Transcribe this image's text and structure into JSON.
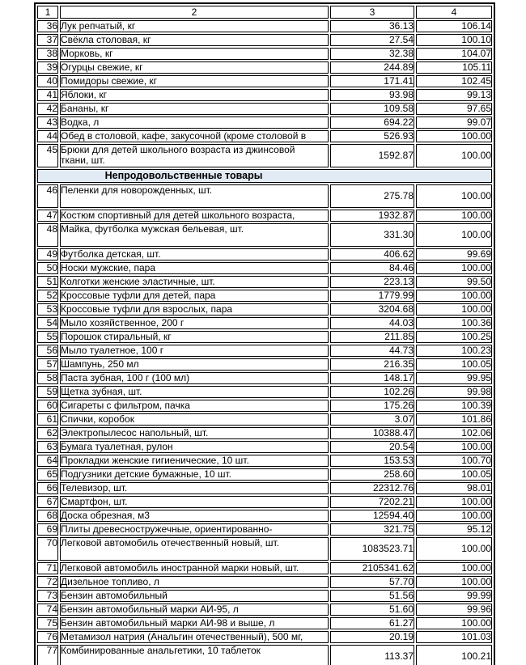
{
  "colors": {
    "page_bg": "#ffffff",
    "border": "#000000",
    "section_bg": "#e2eaf3",
    "text": "#000000"
  },
  "table": {
    "columns": [
      "1",
      "2",
      "3",
      "4"
    ],
    "section_title": "Непродовольственные товары",
    "rows": [
      {
        "num": "36",
        "name": "Лук репчатый, кг",
        "price": "36.13",
        "index": "106.14"
      },
      {
        "num": "37",
        "name": "Свёкла столовая, кг",
        "price": "27.54",
        "index": "100.10"
      },
      {
        "num": "38",
        "name": "Морковь, кг",
        "price": "32.38",
        "index": "104.07"
      },
      {
        "num": "39",
        "name": "Огурцы свежие, кг",
        "price": "244.89",
        "index": "105.11"
      },
      {
        "num": "40",
        "name": "Помидоры свежие, кг",
        "price": "171.41",
        "index": "102.45"
      },
      {
        "num": "41",
        "name": "Яблоки, кг",
        "price": "93.98",
        "index": "99.13"
      },
      {
        "num": "42",
        "name": "Бананы, кг",
        "price": "109.58",
        "index": "97.65"
      },
      {
        "num": "43",
        "name": "Водка, л",
        "price": "694.22",
        "index": "99.07"
      },
      {
        "num": "44",
        "name": "Обед в столовой, кафе, закусочной (кроме столовой в",
        "price": "526.93",
        "index": "100.00"
      },
      {
        "num": "45",
        "name": "Брюки для детей школьного возраста из джинсовой\nткани, шт.",
        "price": "1592.87",
        "index": "100.00",
        "tall": true
      },
      {
        "section": true
      },
      {
        "num": "46",
        "name": "Пеленки для новорожденных, шт.",
        "price": "275.78",
        "index": "100.00",
        "tall": true
      },
      {
        "num": "47",
        "name": "Костюм спортивный для детей школьного возраста,",
        "price": "1932.87",
        "index": "100.00"
      },
      {
        "num": "48",
        "name": "Майка, футболка мужская бельевая, шт.",
        "price": "331.30",
        "index": "100.00",
        "tall": true
      },
      {
        "num": "49",
        "name": "Футболка детская, шт.",
        "price": "406.62",
        "index": "99.69"
      },
      {
        "num": "50",
        "name": "Носки мужские, пара",
        "price": "84.46",
        "index": "100.00"
      },
      {
        "num": "51",
        "name": "Колготки женские эластичные, шт.",
        "price": "223.13",
        "index": "99.50"
      },
      {
        "num": "52",
        "name": "Кроссовые туфли для детей, пара",
        "price": "1779.99",
        "index": "100.00"
      },
      {
        "num": "53",
        "name": "Кроссовые туфли для взрослых, пара",
        "price": "3204.68",
        "index": "100.00"
      },
      {
        "num": "54",
        "name": "Мыло хозяйственное, 200 г",
        "price": "44.03",
        "index": "100.36"
      },
      {
        "num": "55",
        "name": "Порошок стиральный, кг",
        "price": "211.85",
        "index": "100.25"
      },
      {
        "num": "56",
        "name": "Мыло туалетное, 100 г",
        "price": "44.73",
        "index": "100.23"
      },
      {
        "num": "57",
        "name": "Шампунь, 250 мл",
        "price": "216.35",
        "index": "100.05"
      },
      {
        "num": "58",
        "name": "Паста зубная, 100 г (100 мл)",
        "price": "148.17",
        "index": "99.95"
      },
      {
        "num": "59",
        "name": "Щетка зубная, шт.",
        "price": "102.26",
        "index": "99.98"
      },
      {
        "num": "60",
        "name": "Сигареты с фильтром, пачка",
        "price": "175.26",
        "index": "100.39"
      },
      {
        "num": "61",
        "name": "Спички, коробок",
        "price": "3.07",
        "index": "101.86"
      },
      {
        "num": "62",
        "name": "Электропылесос напольный, шт.",
        "price": "10388.47",
        "index": "102.06"
      },
      {
        "num": "63",
        "name": "Бумага туалетная, рулон",
        "price": "20.54",
        "index": "100.00"
      },
      {
        "num": "64",
        "name": "Прокладки женские гигиенические, 10 шт.",
        "price": "153.53",
        "index": "100.70"
      },
      {
        "num": "65",
        "name": "Подгузники детские бумажные, 10 шт.",
        "price": "258.60",
        "index": "100.05"
      },
      {
        "num": "66",
        "name": "Телевизор, шт.",
        "price": "22312.76",
        "index": "98.01"
      },
      {
        "num": "67",
        "name": "Смартфон, шт.",
        "price": "7202.21",
        "index": "100.00"
      },
      {
        "num": "68",
        "name": "Доска обрезная, м3",
        "price": "12594.40",
        "index": "100.00"
      },
      {
        "num": "69",
        "name": "Плиты древесностружечные, ориентированно-",
        "price": "321.75",
        "index": "95.12"
      },
      {
        "num": "70",
        "name": "Легковой автомобиль отечественный новый, шт.",
        "price": "1083523.71",
        "index": "100.00",
        "tall": true
      },
      {
        "num": "71",
        "name": "Легковой автомобиль иностранной марки новый, шт.",
        "price": "2105341.62",
        "index": "100.00"
      },
      {
        "num": "72",
        "name": "Дизельное топливо, л",
        "price": "57.70",
        "index": "100.00"
      },
      {
        "num": "73",
        "name": "Бензин автомобильный",
        "price": "51.56",
        "index": "99.99"
      },
      {
        "num": "74",
        "name": "Бензин автомобильный марки АИ-95, л",
        "price": "51.60",
        "index": "99.96"
      },
      {
        "num": "75",
        "name": "Бензин автомобильный марки АИ-98 и выше, л",
        "price": "61.27",
        "index": "100.00"
      },
      {
        "num": "76",
        "name": "Метамизол натрия (Анальгин отечественный), 500 мг,",
        "price": "20.19",
        "index": "101.03"
      },
      {
        "num": "77",
        "name": "Комбинированные анальгетики, 10 таблеток",
        "price": "113.37",
        "index": "100.21",
        "tall": true
      }
    ]
  }
}
